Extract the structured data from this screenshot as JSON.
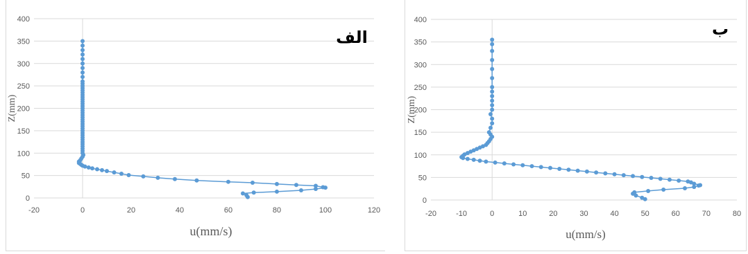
{
  "colors": {
    "series": "#5b9bd5",
    "grid": "#d9d9d9",
    "text": "#595959"
  },
  "chart_data": [
    {
      "type": "line",
      "title": "",
      "panel_label": "الف",
      "xlabel": "u(mm/s)",
      "ylabel": "Z(mm)",
      "xlim": [
        -20,
        120
      ],
      "ylim": [
        0,
        400
      ],
      "xticks": [
        "-20",
        "0",
        "20",
        "40",
        "60",
        "80",
        "100",
        "120"
      ],
      "yticks": [
        "0",
        "50",
        "100",
        "150",
        "200",
        "250",
        "300",
        "350",
        "400"
      ],
      "grid": "horizontal",
      "series": [
        {
          "x": [
            68,
            67.5,
            66,
            70.5,
            80,
            90,
            96,
            100,
            99,
            96,
            88,
            80,
            70,
            60,
            47,
            38,
            31,
            25,
            19,
            16,
            13,
            10,
            8,
            6,
            4,
            2.5,
            1,
            0,
            -0.5,
            -1,
            -1.5,
            -1.5,
            -1,
            -0.5,
            0,
            0.3,
            0,
            0,
            0,
            0,
            0,
            0,
            0,
            0,
            0,
            0,
            0,
            0,
            0,
            0,
            0,
            0,
            0,
            0,
            0,
            0,
            0,
            0,
            0,
            0,
            0,
            0,
            0,
            0,
            0,
            0,
            0,
            0,
            0,
            0,
            0,
            0,
            0,
            0,
            0,
            0,
            0,
            0
          ],
          "y": [
            2,
            6,
            10,
            12,
            14,
            17,
            20,
            23,
            24,
            27,
            29,
            31,
            34,
            36,
            39,
            42,
            45,
            48,
            51,
            54,
            57,
            60,
            62,
            64,
            66,
            68,
            70,
            72,
            74,
            76,
            78,
            81,
            84,
            88,
            92,
            96,
            100,
            105,
            110,
            115,
            120,
            125,
            130,
            135,
            140,
            145,
            150,
            155,
            160,
            165,
            170,
            175,
            180,
            185,
            190,
            195,
            200,
            205,
            210,
            215,
            220,
            225,
            230,
            235,
            240,
            245,
            250,
            255,
            260,
            270,
            280,
            290,
            300,
            310,
            320,
            330,
            340,
            350
          ]
        }
      ]
    },
    {
      "type": "line",
      "title": "",
      "panel_label": "ب",
      "xlabel": "u(mm/s)",
      "ylabel": "Z(mm)",
      "xlim": [
        -20,
        80
      ],
      "ylim": [
        0,
        400
      ],
      "xticks": [
        "-20",
        "-10",
        "0",
        "10",
        "20",
        "30",
        "40",
        "50",
        "60",
        "70",
        "80"
      ],
      "yticks": [
        "0",
        "50",
        "100",
        "150",
        "200",
        "250",
        "300",
        "350",
        "400"
      ],
      "grid": "horizontal",
      "series": [
        {
          "x": [
            50,
            49,
            47,
            46,
            46.5,
            51,
            56,
            63,
            66,
            67.5,
            68,
            66,
            65,
            64,
            61,
            58,
            55,
            52,
            49,
            46,
            43,
            40,
            37,
            34,
            31,
            28,
            25,
            22,
            19,
            16,
            13,
            10,
            7,
            4,
            1,
            -2,
            -4,
            -6,
            -8,
            -9.5,
            -10,
            -9.5,
            -9,
            -8,
            -7,
            -6,
            -5,
            -4,
            -3,
            -2,
            -1.5,
            -1,
            -0.5,
            0,
            -0.5,
            -1,
            -0.5,
            0,
            0,
            -0.5,
            0,
            0,
            0,
            0,
            0,
            0,
            0,
            0,
            0,
            0,
            0,
            0
          ],
          "y": [
            2,
            5,
            10,
            14,
            17,
            20,
            23,
            26,
            29,
            32,
            33,
            36,
            39,
            41,
            43,
            45,
            47,
            49,
            51,
            53,
            55,
            57,
            59,
            61,
            63,
            65,
            67,
            69,
            71,
            73,
            75,
            77,
            79,
            81,
            83,
            85,
            87,
            89,
            91,
            93,
            95,
            98,
            101,
            104,
            107,
            110,
            113,
            116,
            119,
            122,
            126,
            130,
            135,
            140,
            145,
            150,
            160,
            170,
            180,
            190,
            200,
            210,
            220,
            230,
            240,
            250,
            270,
            290,
            310,
            330,
            345,
            355
          ]
        }
      ]
    }
  ]
}
